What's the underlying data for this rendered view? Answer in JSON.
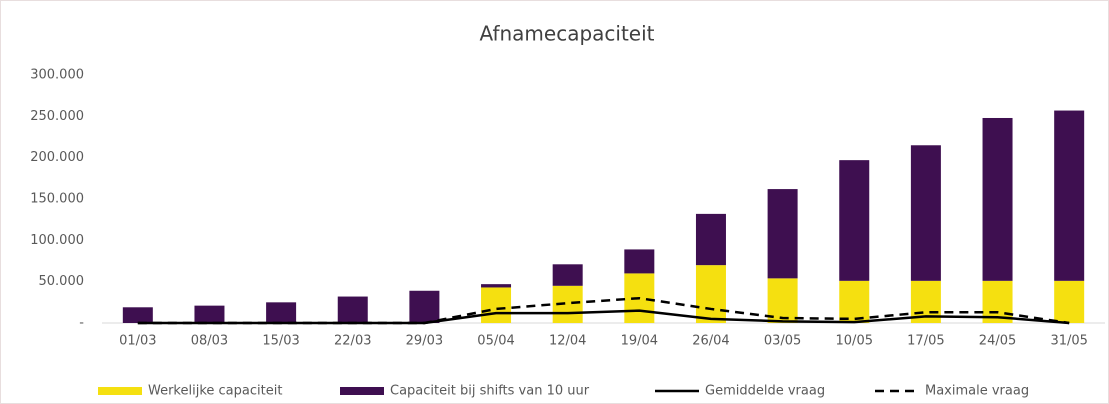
{
  "chart_data": {
    "type": "bar",
    "title": "Afnamecapaciteit",
    "categories": [
      "01/03",
      "08/03",
      "15/03",
      "22/03",
      "29/03",
      "05/04",
      "12/04",
      "19/04",
      "26/04",
      "03/05",
      "10/05",
      "17/05",
      "24/05",
      "31/05"
    ],
    "series": [
      {
        "name": "Werkelijke capaciteit",
        "color": "#f5e010",
        "kind": "bar",
        "values": [
          0,
          0,
          0,
          0,
          0,
          43000,
          45000,
          60000,
          70000,
          54000,
          51000,
          51000,
          51000,
          51000
        ]
      },
      {
        "name": "Capaciteit bij shifts van 10 uur",
        "color": "#3e0f50",
        "kind": "bar",
        "values": [
          19000,
          21000,
          25000,
          32000,
          39000,
          4000,
          26000,
          29000,
          62000,
          108000,
          146000,
          164000,
          197000,
          206000
        ]
      },
      {
        "name": "Gemiddelde vraag",
        "color": "#000000",
        "kind": "line",
        "dash": false,
        "values": [
          0,
          0,
          0,
          0,
          0,
          12000,
          12000,
          15000,
          5000,
          2000,
          1000,
          8000,
          7000,
          0
        ]
      },
      {
        "name": "Maximale vraag",
        "color": "#000000",
        "kind": "line",
        "dash": true,
        "values": [
          0,
          0,
          0,
          0,
          0,
          17000,
          24000,
          30000,
          17000,
          6000,
          5000,
          13000,
          13000,
          0
        ]
      }
    ],
    "stacked": true,
    "ylim": [
      0,
      300000
    ],
    "yticks": [
      {
        "value": 0,
        "label": "-"
      },
      {
        "value": 50000,
        "label": "50.000"
      },
      {
        "value": 100000,
        "label": "100.000"
      },
      {
        "value": 150000,
        "label": "150.000"
      },
      {
        "value": 200000,
        "label": "200.000"
      },
      {
        "value": 250000,
        "label": "250.000"
      },
      {
        "value": 300000,
        "label": "300.000"
      }
    ],
    "grid": false,
    "legend": "bottom"
  }
}
